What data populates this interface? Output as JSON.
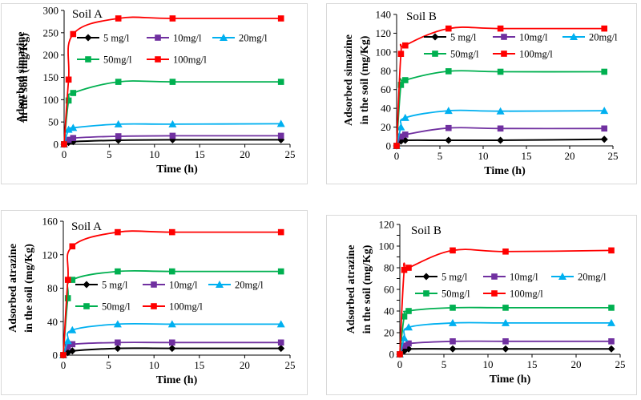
{
  "figure_title": "",
  "colors": {
    "5 mg/l": "#000000",
    "10mg/l": "#7030a0",
    "20mg/l": "#00b0f0",
    "50mg/l": "#00b050",
    "100mg/l": "#ff0000"
  },
  "chart_data": [
    {
      "type": "line",
      "title": "Soil A",
      "xlabel": "Time (h)",
      "ylabel": [
        "Adsorbed simazine",
        "in the soil (mg/Kg)"
      ],
      "xlim": [
        0,
        25
      ],
      "ylim": [
        0,
        300
      ],
      "xticks": [
        0,
        5,
        10,
        15,
        20,
        25
      ],
      "yticks": [
        0,
        50,
        100,
        150,
        200,
        250,
        300
      ],
      "legend": [
        "5 mg/l",
        "10mg/l",
        "20mg/l",
        "50mg/l",
        "100mg/l"
      ],
      "x": [
        0,
        0.5,
        1,
        6,
        12,
        24
      ],
      "series": [
        {
          "name": "5 mg/l",
          "marker": "diamond",
          "values": [
            0,
            4,
            6,
            9,
            10,
            10
          ]
        },
        {
          "name": "10mg/l",
          "marker": "square",
          "values": [
            0,
            10,
            14,
            18,
            19,
            19
          ]
        },
        {
          "name": "20mg/l",
          "marker": "triangle",
          "values": [
            0,
            33,
            37,
            45,
            45,
            46
          ]
        },
        {
          "name": "50mg/l",
          "marker": "square",
          "values": [
            0,
            98,
            115,
            140,
            140,
            140
          ]
        },
        {
          "name": "100mg/l",
          "marker": "square",
          "values": [
            0,
            145,
            247,
            282,
            282,
            282
          ]
        }
      ]
    },
    {
      "type": "line",
      "title": "Soil B",
      "xlabel": "Time (h)",
      "ylabel": [
        "Adsorbed simazine",
        "in the soil (mg/Kg)"
      ],
      "xlim": [
        0,
        25
      ],
      "ylim": [
        0,
        140
      ],
      "xticks": [
        0,
        5,
        10,
        15,
        20,
        25
      ],
      "yticks": [
        0,
        20,
        40,
        60,
        80,
        100,
        120,
        140
      ],
      "legend": [
        "5 mg/l",
        "10mg/l",
        "20mg/l",
        "50mg/l",
        "100mg/l"
      ],
      "x": [
        0,
        0.5,
        1,
        6,
        12,
        24
      ],
      "series": [
        {
          "name": "5 mg/l",
          "marker": "diamond",
          "values": [
            0,
            5,
            6,
            6,
            6,
            7
          ]
        },
        {
          "name": "10mg/l",
          "marker": "square",
          "values": [
            0,
            10,
            12,
            19,
            18.5,
            18.5
          ]
        },
        {
          "name": "20mg/l",
          "marker": "triangle",
          "values": [
            0,
            20,
            30,
            37.5,
            37,
            37.5
          ]
        },
        {
          "name": "50mg/l",
          "marker": "square",
          "values": [
            0,
            65,
            70,
            79.5,
            79,
            79
          ]
        },
        {
          "name": "100mg/l",
          "marker": "square",
          "values": [
            0,
            98,
            107,
            125,
            125,
            125
          ]
        }
      ]
    },
    {
      "type": "line",
      "title": "Soil A",
      "xlabel": "Time (h)",
      "ylabel": [
        "Adsorbed atrazine",
        "in the soil (mg/Kg)"
      ],
      "xlim": [
        0,
        25
      ],
      "ylim": [
        0,
        160
      ],
      "xticks": [
        0,
        5,
        10,
        15,
        20,
        25
      ],
      "yticks": [
        0,
        40,
        80,
        120,
        160
      ],
      "legend": [
        "5 mg/l",
        "10mg/l",
        "20mg/l",
        "50mg/l",
        "100mg/l"
      ],
      "x": [
        0,
        0.5,
        1,
        6,
        12,
        24
      ],
      "series": [
        {
          "name": "5 mg/l",
          "marker": "diamond",
          "values": [
            0,
            3,
            5,
            8,
            8,
            8
          ]
        },
        {
          "name": "10mg/l",
          "marker": "square",
          "values": [
            0,
            10,
            13,
            15,
            15,
            15
          ]
        },
        {
          "name": "20mg/l",
          "marker": "triangle",
          "values": [
            0,
            17,
            30,
            37,
            37,
            37
          ]
        },
        {
          "name": "50mg/l",
          "marker": "square",
          "values": [
            0,
            68,
            90,
            100,
            100,
            100
          ]
        },
        {
          "name": "100mg/l",
          "marker": "square",
          "values": [
            0,
            90,
            130,
            147,
            147,
            147
          ]
        }
      ]
    },
    {
      "type": "line",
      "title": "Soil B",
      "xlabel": "Time (h)",
      "ylabel": [
        "Adsorbed atrazine",
        "in the soil (mg/Kg)"
      ],
      "xlim": [
        0,
        25
      ],
      "ylim": [
        0,
        120
      ],
      "xticks": [
        0,
        5,
        10,
        15,
        20,
        25
      ],
      "yticks": [
        0,
        10,
        20,
        30,
        40,
        50,
        60,
        70,
        80,
        90,
        100,
        110,
        120
      ],
      "legend": [
        "5 mg/l",
        "10mg/l",
        "20mg/l",
        "50mg/l",
        "100mg/l"
      ],
      "x": [
        0,
        0.5,
        1,
        6,
        12,
        24
      ],
      "series": [
        {
          "name": "5 mg/l",
          "marker": "diamond",
          "values": [
            0,
            3,
            5,
            5,
            5,
            5
          ]
        },
        {
          "name": "10mg/l",
          "marker": "square",
          "values": [
            0,
            8,
            10,
            12,
            12,
            12
          ]
        },
        {
          "name": "20mg/l",
          "marker": "triangle",
          "values": [
            0,
            15,
            25,
            29,
            29,
            29
          ]
        },
        {
          "name": "50mg/l",
          "marker": "square",
          "values": [
            0,
            35,
            40,
            43,
            43,
            43
          ]
        },
        {
          "name": "100mg/l",
          "marker": "square",
          "values": [
            0,
            78,
            80,
            96,
            95,
            96
          ]
        }
      ]
    }
  ]
}
